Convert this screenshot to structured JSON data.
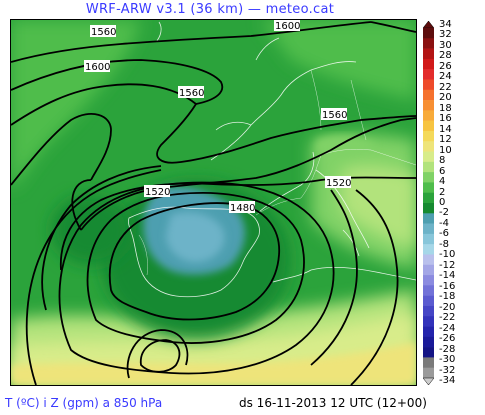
{
  "header": {
    "title": "WRF-ARW v3.1 (36 km) — meteo.cat"
  },
  "footer": {
    "variable": "T (ºC) i Z (gpm) a 850 hPa",
    "datetime": "ds 16-11-2013 12 UTC (12+00)"
  },
  "contour_labels": [
    "1560",
    "1600",
    "1600",
    "1560",
    "1560",
    "1520",
    "1520",
    "1480"
  ],
  "colorbar": {
    "labels": [
      "34",
      "32",
      "30",
      "28",
      "26",
      "24",
      "22",
      "20",
      "18",
      "16",
      "14",
      "12",
      "10",
      "8",
      "6",
      "4",
      "2",
      "0",
      "-2",
      "-4",
      "-6",
      "-8",
      "-10",
      "-12",
      "-14",
      "-16",
      "-18",
      "-20",
      "-22",
      "-24",
      "-26",
      "-28",
      "-30",
      "-32",
      "-34"
    ],
    "colors": [
      "#5e0d0d",
      "#8b1111",
      "#b31414",
      "#d11a1a",
      "#e32c2c",
      "#ee4b2b",
      "#f5712e",
      "#f78f33",
      "#f8ab3a",
      "#f7c441",
      "#f4d95a",
      "#eee47a",
      "#d8ec8a",
      "#b2e37c",
      "#80d266",
      "#4fbd4b",
      "#2ba33b",
      "#168a30",
      "#4e9fb0",
      "#6db3c8",
      "#88c6da",
      "#a6d7e8",
      "#b9c0ec",
      "#a3a6e6",
      "#8b8be0",
      "#7272d8",
      "#5b5bd0",
      "#4646c6",
      "#3333bb",
      "#2424ac",
      "#1a1a99",
      "#141485",
      "#7a7a7a",
      "#9a9a9a"
    ]
  }
}
